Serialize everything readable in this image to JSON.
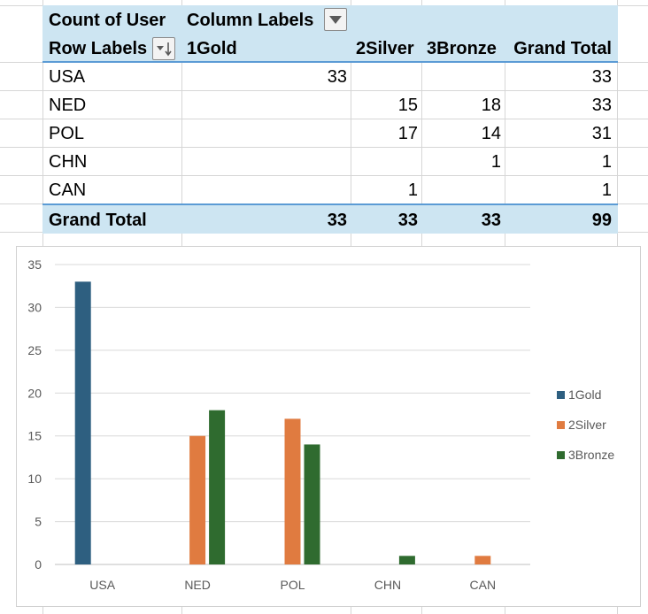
{
  "pivot": {
    "header1": {
      "label": "Count of User",
      "column_labels": "Column Labels"
    },
    "header2": {
      "row_labels": "Row Labels",
      "cols": [
        "1Gold",
        "2Silver",
        "3Bronze",
        "Grand Total"
      ]
    },
    "rows": [
      {
        "label": "USA",
        "gold": "33",
        "silver": "",
        "bronze": "",
        "total": "33"
      },
      {
        "label": "NED",
        "gold": "",
        "silver": "15",
        "bronze": "18",
        "total": "33"
      },
      {
        "label": "POL",
        "gold": "",
        "silver": "17",
        "bronze": "14",
        "total": "31"
      },
      {
        "label": "CHN",
        "gold": "",
        "silver": "",
        "bronze": "1",
        "total": "1"
      },
      {
        "label": "CAN",
        "gold": "",
        "silver": "1",
        "bronze": "",
        "total": "1"
      }
    ],
    "grand_total": {
      "label": "Grand Total",
      "gold": "33",
      "silver": "33",
      "bronze": "33",
      "total": "99"
    }
  },
  "chart_data": {
    "type": "bar",
    "categories": [
      "USA",
      "NED",
      "POL",
      "CHN",
      "CAN"
    ],
    "series": [
      {
        "name": "1Gold",
        "color": "#2e5f80",
        "values": [
          33,
          0,
          0,
          0,
          0
        ]
      },
      {
        "name": "2Silver",
        "color": "#e07b40",
        "values": [
          0,
          15,
          17,
          0,
          1
        ]
      },
      {
        "name": "3Bronze",
        "color": "#2f6b2f",
        "values": [
          0,
          18,
          14,
          1,
          0
        ]
      }
    ],
    "ylim": [
      0,
      35
    ],
    "yticks": [
      0,
      5,
      10,
      15,
      20,
      25,
      30,
      35
    ],
    "grid": true,
    "legend": "right"
  }
}
